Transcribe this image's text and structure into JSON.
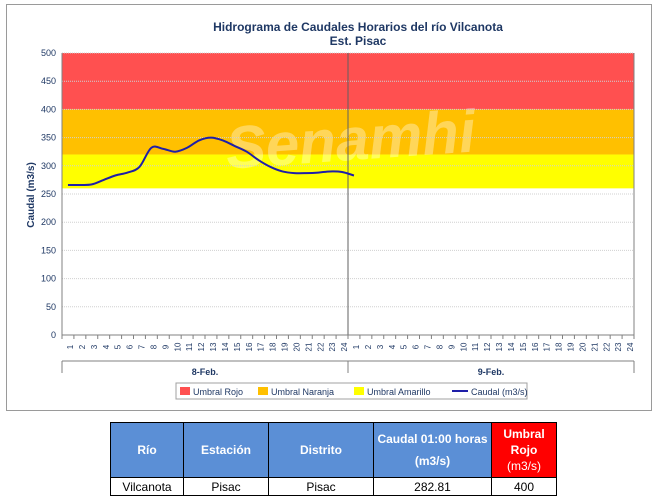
{
  "chart_data": {
    "type": "line",
    "title": "Hidrograma de Caudales Horarios del río Vilcanota",
    "subtitle": "Est. Pisac",
    "ylabel": "Caudal  (m3/s)",
    "ylim": [
      0,
      500
    ],
    "yticks": [
      0,
      50,
      100,
      150,
      200,
      250,
      300,
      350,
      400,
      450,
      500
    ],
    "hour_ticks": [
      "1",
      "2",
      "3",
      "4",
      "5",
      "6",
      "7",
      "8",
      "9",
      "10",
      "11",
      "12",
      "13",
      "14",
      "15",
      "16",
      "17",
      "18",
      "19",
      "20",
      "21",
      "22",
      "23",
      "24",
      "1",
      "2",
      "3",
      "4",
      "5",
      "6",
      "7",
      "8",
      "9",
      "10",
      "11",
      "12",
      "13",
      "14",
      "15",
      "16",
      "17",
      "18",
      "19",
      "20",
      "21",
      "22",
      "23",
      "24"
    ],
    "day_labels": [
      "8-Feb.",
      "9-Feb."
    ],
    "grid": true,
    "legend_position": "bottom",
    "bands": [
      {
        "name": "Umbral Rojo",
        "from": 400,
        "to": 500,
        "color": "#ff5050"
      },
      {
        "name": "Umbral Naranja",
        "from": 320,
        "to": 400,
        "color": "#ffc000"
      },
      {
        "name": "Umbral Amarillo",
        "from": 260,
        "to": 320,
        "color": "#ffff00"
      }
    ],
    "series": [
      {
        "name": "Caudal (m3/s)",
        "color": "#1f1fa8",
        "x": [
          1,
          2,
          3,
          4,
          5,
          6,
          7,
          8,
          9,
          10,
          11,
          12,
          13,
          14,
          15,
          16,
          17,
          18,
          19,
          20,
          21,
          22,
          23,
          24,
          25
        ],
        "values": [
          266,
          266,
          267,
          275,
          283,
          288,
          298,
          332,
          330,
          325,
          332,
          345,
          350,
          345,
          335,
          325,
          310,
          298,
          290,
          287,
          287,
          288,
          290,
          289,
          282.81
        ]
      }
    ],
    "watermark": "Senamhi"
  },
  "table": {
    "headers": [
      "Río",
      "Estación",
      "Distrito",
      "Caudal 01:00 horas",
      "(m3/s)",
      "Umbral",
      "Rojo",
      "(m3/s)"
    ],
    "row": [
      "Vilcanota",
      "Pisac",
      "Pisac",
      "282.81",
      "400"
    ]
  }
}
